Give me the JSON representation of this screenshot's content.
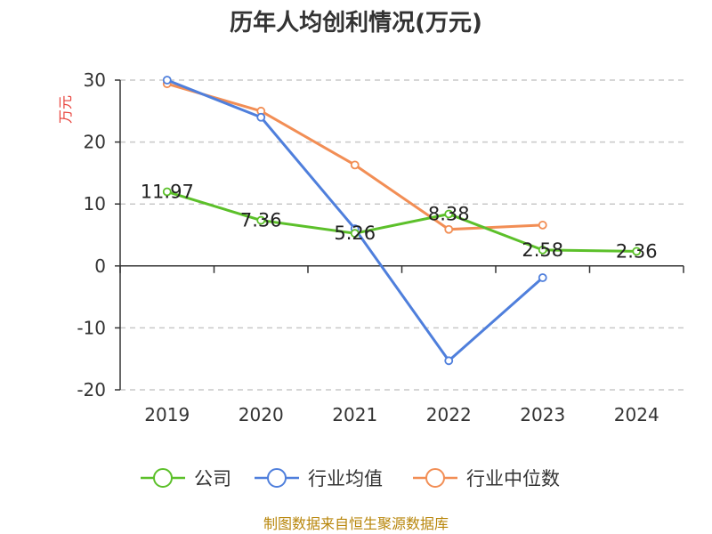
{
  "chart_data": {
    "type": "line",
    "title": "历年人均创利情况(万元)",
    "ylabel": "万元",
    "categories": [
      "2019",
      "2020",
      "2021",
      "2022",
      "2023",
      "2024"
    ],
    "ylim": [
      -20,
      30
    ],
    "yticks": [
      30,
      20,
      10,
      0,
      -10,
      -20
    ],
    "grid": true,
    "legend_position": "bottom",
    "series": [
      {
        "name": "公司",
        "color": "#5cc02a",
        "values": [
          11.97,
          7.36,
          5.26,
          8.38,
          2.58,
          2.36
        ],
        "labels": [
          "11.97",
          "7.36",
          "5.26",
          "8.38",
          "2.58",
          "2.36"
        ]
      },
      {
        "name": "行业均值",
        "color": "#4f7fdc",
        "values": [
          30.0,
          24.0,
          6.0,
          -15.3,
          -1.9,
          null
        ]
      },
      {
        "name": "行业中位数",
        "color": "#f28e55",
        "values": [
          29.4,
          25.0,
          16.3,
          5.9,
          6.6,
          null
        ]
      }
    ],
    "source": "制图数据来自恒生聚源数据库"
  }
}
